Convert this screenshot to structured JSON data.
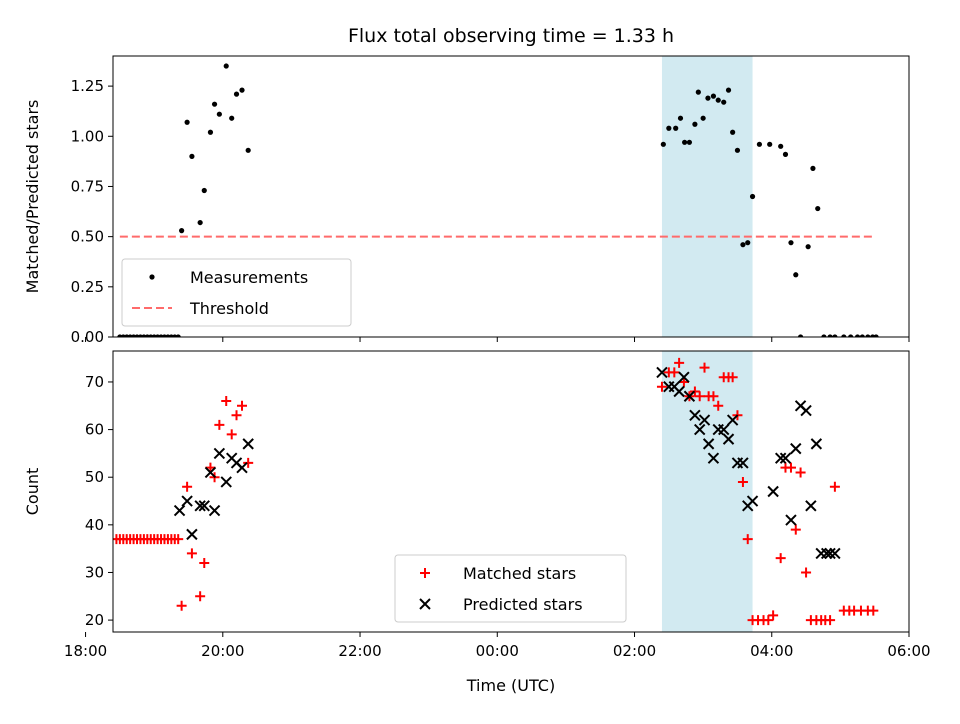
{
  "title": "Flux total observing time = 1.33 h",
  "chart_data": [
    {
      "type": "scatter",
      "ylabel": "Matched/Predicted stars",
      "xlabel": "",
      "xlim": [
        18.4,
        30.0
      ],
      "ylim": [
        0,
        1.4
      ],
      "yticks": [
        0,
        0.25,
        0.5,
        0.75,
        1.0,
        1.25
      ],
      "ytick_labels": [
        "0.00",
        "0.25",
        "0.50",
        "0.75",
        "1.00",
        "1.25"
      ],
      "shaded_span": [
        26.4,
        27.72
      ],
      "shaded_color": "#add8e6",
      "legend_position": "lower-left",
      "series": [
        {
          "name": "Measurements",
          "kind": "dots",
          "color": "#000000",
          "x": [
            18.5,
            18.55,
            18.6,
            18.65,
            18.7,
            18.75,
            18.8,
            18.85,
            18.9,
            18.95,
            19.0,
            19.05,
            19.1,
            19.15,
            19.2,
            19.25,
            19.3,
            19.35,
            19.4,
            19.48,
            19.55,
            19.67,
            19.73,
            19.82,
            19.88,
            19.95,
            20.05,
            20.13,
            20.2,
            20.28,
            20.37,
            26.42,
            26.5,
            26.6,
            26.67,
            26.73,
            26.8,
            26.88,
            26.93,
            27.0,
            27.07,
            27.15,
            27.22,
            27.3,
            27.37,
            27.43,
            27.5,
            27.58,
            27.65,
            27.72,
            27.82,
            27.97,
            28.13,
            28.2,
            28.28,
            28.35,
            28.42,
            28.53,
            28.6,
            28.67,
            28.76,
            28.85,
            28.92,
            29.05,
            29.15,
            29.25,
            29.32,
            29.4,
            29.47,
            29.52
          ],
          "y": [
            0,
            0,
            0,
            0,
            0,
            0,
            0,
            0,
            0,
            0,
            0,
            0,
            0,
            0,
            0,
            0,
            0,
            0,
            0.53,
            1.07,
            0.9,
            0.57,
            0.73,
            1.02,
            1.16,
            1.11,
            1.35,
            1.09,
            1.21,
            1.23,
            0.93,
            0.96,
            1.04,
            1.04,
            1.09,
            0.97,
            0.97,
            1.06,
            1.22,
            1.09,
            1.19,
            1.2,
            1.18,
            1.17,
            1.23,
            1.02,
            0.93,
            0.46,
            0.47,
            0.7,
            0.96,
            0.96,
            0.95,
            0.91,
            0.47,
            0.31,
            0,
            0.45,
            0.84,
            0.64,
            0,
            0,
            0,
            0,
            0,
            0,
            0,
            0,
            0,
            0
          ]
        },
        {
          "name": "Threshold",
          "kind": "dashed-line",
          "color": "#ff6b6b",
          "x": [
            18.5,
            29.5
          ],
          "y": [
            0.5,
            0.5
          ]
        }
      ]
    },
    {
      "type": "scatter",
      "ylabel": "Count",
      "xlabel": "Time (UTC)",
      "xlim": [
        18.4,
        30.0
      ],
      "ylim": [
        17.5,
        76.5
      ],
      "yticks": [
        20,
        30,
        40,
        50,
        60,
        70
      ],
      "ytick_labels": [
        "20",
        "30",
        "40",
        "50",
        "60",
        "70"
      ],
      "xticks": [
        18,
        20,
        22,
        24,
        26,
        28,
        30
      ],
      "xtick_labels": [
        "18:00",
        "20:00",
        "22:00",
        "00:00",
        "02:00",
        "04:00",
        "06:00"
      ],
      "shaded_span": [
        26.4,
        27.72
      ],
      "shaded_color": "#add8e6",
      "legend_position": "lower-center",
      "series": [
        {
          "name": "Matched stars",
          "kind": "plus",
          "color": "#ff0000",
          "x": [
            18.45,
            18.5,
            18.55,
            18.6,
            18.65,
            18.7,
            18.75,
            18.8,
            18.85,
            18.9,
            18.95,
            19.0,
            19.05,
            19.1,
            19.15,
            19.2,
            19.25,
            19.3,
            19.35,
            19.4,
            19.48,
            19.55,
            19.67,
            19.73,
            19.82,
            19.88,
            19.95,
            20.05,
            20.13,
            20.2,
            20.28,
            20.37,
            26.4,
            26.5,
            26.58,
            26.65,
            26.72,
            26.8,
            26.88,
            26.95,
            27.02,
            27.08,
            27.15,
            27.22,
            27.3,
            27.37,
            27.43,
            27.5,
            27.58,
            27.65,
            27.72,
            27.8,
            27.88,
            27.95,
            28.02,
            28.13,
            28.2,
            28.28,
            28.35,
            28.42,
            28.5,
            28.57,
            28.65,
            28.72,
            28.78,
            28.85,
            28.92,
            29.05,
            29.13,
            29.2,
            29.3,
            29.4,
            29.48
          ],
          "y": [
            37,
            37,
            37,
            37,
            37,
            37,
            37,
            37,
            37,
            37,
            37,
            37,
            37,
            37,
            37,
            37,
            37,
            37,
            37,
            23,
            48,
            34,
            25,
            32,
            52,
            50,
            61,
            66,
            59,
            63,
            65,
            53,
            69,
            72,
            72,
            74,
            70,
            67,
            68,
            67,
            73,
            67,
            67,
            65,
            71,
            71,
            71,
            63,
            49,
            37,
            20,
            20,
            20,
            20,
            21,
            33,
            52,
            52,
            39,
            51,
            30,
            20,
            20,
            20,
            20,
            20,
            48,
            22,
            22,
            22,
            22,
            22,
            22
          ]
        },
        {
          "name": "Predicted stars",
          "kind": "x",
          "color": "#000000",
          "x": [
            19.37,
            19.48,
            19.55,
            19.67,
            19.73,
            19.82,
            19.88,
            19.95,
            20.05,
            20.13,
            20.2,
            20.28,
            20.37,
            26.4,
            26.5,
            26.58,
            26.65,
            26.72,
            26.8,
            26.88,
            26.95,
            27.02,
            27.08,
            27.15,
            27.22,
            27.3,
            27.37,
            27.43,
            27.5,
            27.58,
            27.65,
            27.72,
            28.02,
            28.13,
            28.2,
            28.28,
            28.35,
            28.42,
            28.5,
            28.57,
            28.65,
            28.72,
            28.8,
            28.85,
            28.92
          ],
          "y": [
            43,
            45,
            38,
            44,
            44,
            51,
            43,
            55,
            49,
            54,
            53,
            52,
            57,
            72,
            69,
            69,
            68,
            71,
            67,
            63,
            60,
            62,
            57,
            54,
            60,
            60,
            58,
            62,
            53,
            53,
            44,
            45,
            47,
            54,
            54,
            41,
            56,
            65,
            64,
            44,
            57,
            34,
            34,
            34,
            34
          ]
        }
      ]
    }
  ]
}
